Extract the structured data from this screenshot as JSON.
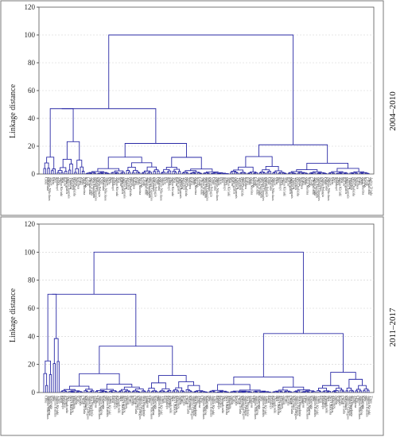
{
  "chart_data": [
    {
      "type": "dendrogram",
      "period_label": "2004–2010",
      "ylabel": "Linkage distance",
      "ylim": [
        0,
        120
      ],
      "yticks": [
        0,
        20,
        40,
        60,
        80,
        100,
        120
      ],
      "leaf_count": 170,
      "leaf_labels": [
        "Crete",
        "Kalamata",
        "Aghios Nikolaos",
        "Agios",
        "Patra",
        "Neo",
        "Malakopi",
        "Tinos",
        "Aghia Kiriaki",
        "Nea",
        "Kalim",
        "Makrigialos",
        "Aghios Ioannis",
        "Thalassa",
        "Vasilikos",
        "Nea Chalkida",
        "Aghia",
        "Kalithea",
        "Porto",
        "Vathy",
        "Agia Marina",
        "Kavala",
        "Livadi",
        "Thessaloniki",
        "Aghia Triada",
        "Nea Moudania",
        "Aghios Georgios",
        "Kalymnos",
        "Aghia Pelagia"
      ],
      "clusters": [
        {
          "name": "left-outlier-cluster",
          "span": [
            0,
            21
          ],
          "height": 47
        },
        {
          "name": "middle-cluster",
          "span": [
            22,
            96
          ],
          "height": 22
        },
        {
          "name": "right-cluster",
          "span": [
            97,
            169
          ],
          "height": 21
        }
      ],
      "merges": [
        {
          "height": 100
        },
        {
          "height": 47
        },
        {
          "height": 28
        },
        {
          "height": 22
        },
        {
          "height": 21
        },
        {
          "height": 17
        },
        {
          "height": 14
        },
        {
          "height": 12
        },
        {
          "height": 10
        },
        {
          "height": 8
        }
      ]
    },
    {
      "type": "dendrogram",
      "period_label": "2011–2017",
      "ylabel": "Linkage distance",
      "ylim": [
        0,
        120
      ],
      "yticks": [
        0,
        20,
        40,
        60,
        80,
        100,
        120
      ],
      "leaf_count": 170,
      "leaf_labels": [
        "Crete",
        "Aghios Nikolaos",
        "Aghia Marina",
        "Kalamata",
        "Neo",
        "Aghios Ioannis",
        "Aghia Kiriaki",
        "Tinos",
        "Patra",
        "Malakopi",
        "Kalithea",
        "Thessaloniki",
        "Nea",
        "Nea Chalkida",
        "Makrigialos",
        "Vasilikos",
        "Aghia",
        "Porto",
        "Kavala",
        "Livadi",
        "Aghia Triada",
        "Kalymnos",
        "Aghios Georgios",
        "Aghia Pelagia",
        "Nea Moudania",
        "Vathy",
        "Thalassa"
      ],
      "clusters": [
        {
          "name": "left-outlier-cluster",
          "span": [
            0,
            8
          ],
          "height": 70
        },
        {
          "name": "middle-left-cluster",
          "span": [
            9,
            85
          ],
          "height": 33
        },
        {
          "name": "right-cluster",
          "span": [
            86,
            169
          ],
          "height": 42
        }
      ],
      "merges": [
        {
          "height": 100
        },
        {
          "height": 70
        },
        {
          "height": 42
        },
        {
          "height": 33
        },
        {
          "height": 32
        },
        {
          "height": 30
        },
        {
          "height": 29
        },
        {
          "height": 26
        },
        {
          "height": 18
        },
        {
          "height": 12
        }
      ]
    }
  ]
}
